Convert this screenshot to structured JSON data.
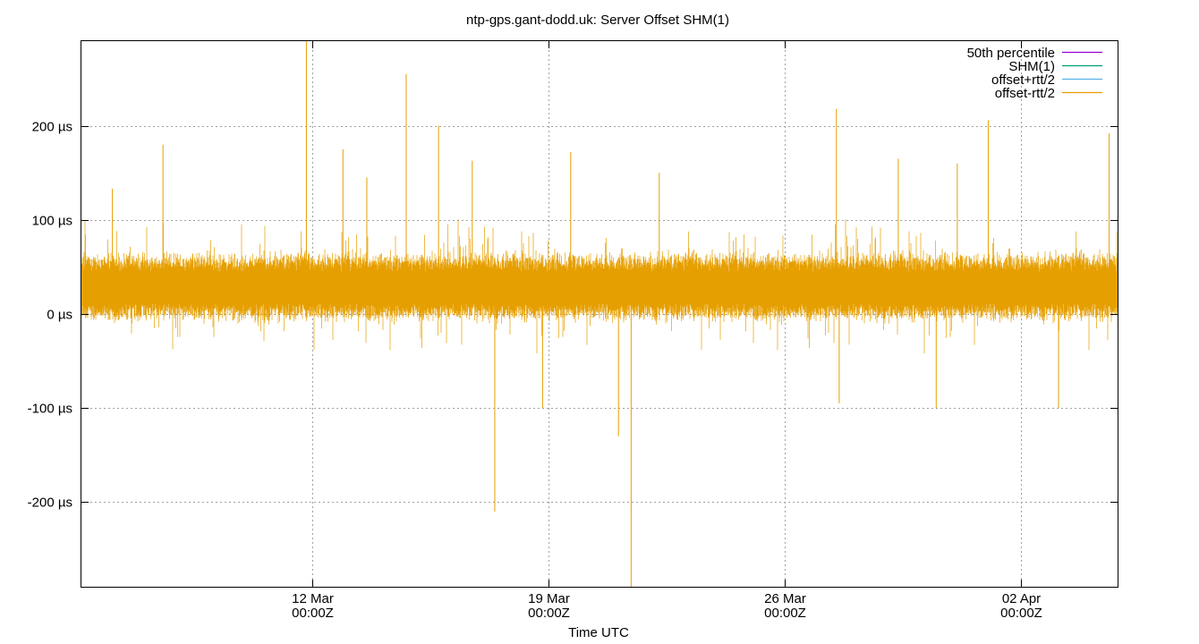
{
  "chart_data": {
    "type": "line",
    "title": "ntp-gps.gant-dodd.uk: Server Offset SHM(1)",
    "xlabel": "Time UTC",
    "ylabel": "",
    "y_unit": "µs",
    "ylim": [
      -290,
      290
    ],
    "xlim": [
      "2024-03-05T04:00Z",
      "2024-04-04T21:00Z"
    ],
    "grid": true,
    "legend_position": "top-right",
    "x_ticks": [
      {
        "date": "2024-03-12T00:00Z",
        "label1": "12 Mar",
        "label2": "00:00Z"
      },
      {
        "date": "2024-03-19T00:00Z",
        "label1": "19 Mar",
        "label2": "00:00Z"
      },
      {
        "date": "2024-03-26T00:00Z",
        "label1": "26 Mar",
        "label2": "00:00Z"
      },
      {
        "date": "2024-04-02T00:00Z",
        "label1": "02 Apr",
        "label2": "00:00Z"
      }
    ],
    "y_ticks": [
      {
        "value": 200,
        "label": "200 µs"
      },
      {
        "value": 100,
        "label": "100 µs"
      },
      {
        "value": 0,
        "label": "0 µs"
      },
      {
        "value": -100,
        "label": "-100 µs"
      },
      {
        "value": -200,
        "label": "-200 µs"
      }
    ],
    "series": [
      {
        "name": "50th percentile",
        "color": "#9400d3",
        "values": []
      },
      {
        "name": "SHM(1)",
        "color": "#009e73",
        "values": []
      },
      {
        "name": "offset+rtt/2",
        "color": "#56b4e9",
        "values": []
      },
      {
        "name": "offset-rtt/2",
        "color": "#e69f00",
        "band": {
          "center_us": 28,
          "typical_low_us": 5,
          "typical_high_us": 60
        },
        "spikes": [
          {
            "x": "2024-03-11T20:00Z",
            "y": 290
          },
          {
            "x": "2024-03-14T19:00Z",
            "y": 255
          },
          {
            "x": "2024-03-15T18:00Z",
            "y": 200
          },
          {
            "x": "2024-03-07T14:00Z",
            "y": 180
          },
          {
            "x": "2024-03-17T10:00Z",
            "y": -210
          },
          {
            "x": "2024-03-19T16:00Z",
            "y": 172
          },
          {
            "x": "2024-03-21T11:00Z",
            "y": -290
          },
          {
            "x": "2024-03-27T13:00Z",
            "y": 218
          },
          {
            "x": "2024-04-01T01:00Z",
            "y": 206
          },
          {
            "x": "2024-04-04T15:00Z",
            "y": 192
          },
          {
            "x": "2024-03-30T12:00Z",
            "y": -100
          },
          {
            "x": "2024-04-03T03:00Z",
            "y": -100
          },
          {
            "x": "2024-03-18T20:00Z",
            "y": -100
          },
          {
            "x": "2024-03-21T02:00Z",
            "y": -130
          },
          {
            "x": "2024-03-27T15:00Z",
            "y": -95
          },
          {
            "x": "2024-03-12T22:00Z",
            "y": 175
          },
          {
            "x": "2024-03-16T18:00Z",
            "y": 163
          },
          {
            "x": "2024-03-22T07:00Z",
            "y": 150
          },
          {
            "x": "2024-03-13T15:00Z",
            "y": 145
          },
          {
            "x": "2024-03-06T02:00Z",
            "y": 133
          },
          {
            "x": "2024-03-31T03:00Z",
            "y": 160
          },
          {
            "x": "2024-03-29T09:00Z",
            "y": 165
          }
        ]
      }
    ]
  }
}
